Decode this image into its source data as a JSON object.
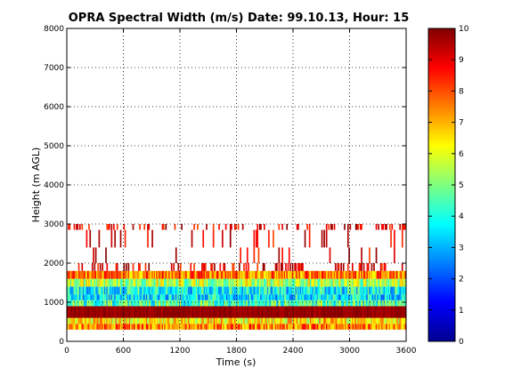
{
  "chart_data": {
    "type": "heatmap",
    "title": "OPRA Spectral Width (m/s)  Date: 99.10.13, Hour: 15",
    "xlabel": "Time (s)",
    "ylabel": "Height (m AGL)",
    "xlim": [
      0,
      3600
    ],
    "ylim": [
      0,
      8000
    ],
    "x_ticks": [
      0,
      600,
      1200,
      1800,
      2400,
      3000,
      3600
    ],
    "y_ticks": [
      0,
      1000,
      2000,
      3000,
      4000,
      5000,
      6000,
      7000,
      8000
    ],
    "grid": true,
    "colormap": "jet",
    "colorbar": {
      "min": 0,
      "max": 10,
      "ticks": [
        0,
        1,
        2,
        3,
        4,
        5,
        6,
        7,
        8,
        9,
        10
      ]
    },
    "height_bands": [
      {
        "from": 300,
        "to": 450,
        "width_ms": 7.5
      },
      {
        "from": 450,
        "to": 600,
        "width_ms": 6.5
      },
      {
        "from": 600,
        "to": 900,
        "width_ms": 10
      },
      {
        "from": 900,
        "to": 1050,
        "width_ms": 4.5
      },
      {
        "from": 1050,
        "to": 1200,
        "width_ms": 3.5
      },
      {
        "from": 1200,
        "to": 1400,
        "width_ms": 3.8
      },
      {
        "from": 1400,
        "to": 1600,
        "width_ms": 5.5
      },
      {
        "from": 1600,
        "to": 1800,
        "width_ms": 7.5
      },
      {
        "from": 1800,
        "to": 2000,
        "width_ms": 9.5
      },
      {
        "from": 2000,
        "to": 2400,
        "width_ms": 9.5
      },
      {
        "from": 2400,
        "to": 2850,
        "width_ms": 9.5
      },
      {
        "from": 2850,
        "to": 3000,
        "width_ms": 9.5
      }
    ]
  }
}
